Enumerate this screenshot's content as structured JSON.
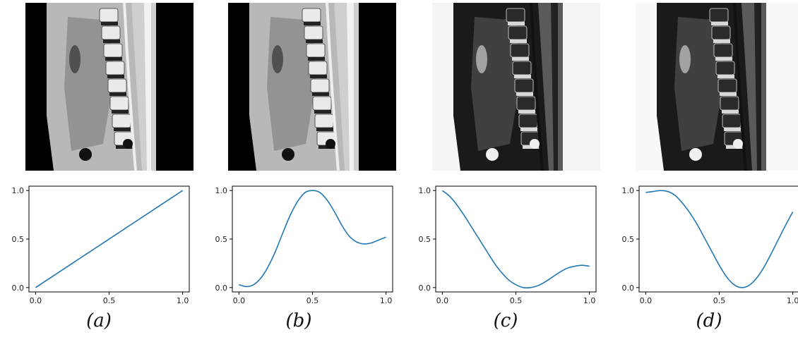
{
  "figure": {
    "panels": [
      {
        "id": "a",
        "caption": "(a)",
        "image": "sagittal-lumbar-spine-mri-original",
        "background": "#000000"
      },
      {
        "id": "b",
        "caption": "(b)",
        "image": "sagittal-lumbar-spine-mri-intensity-remapped",
        "background": "#000000"
      },
      {
        "id": "c",
        "caption": "(c)",
        "image": "sagittal-lumbar-spine-mri-inverted-remap",
        "background": "#f5f5f5"
      },
      {
        "id": "d",
        "caption": "(d)",
        "image": "sagittal-lumbar-spine-mri-inverted-remap-2",
        "background": "#f8f8f8"
      }
    ],
    "line_color": "#1f77b4"
  },
  "chart_data": [
    {
      "type": "line",
      "x": [
        0.0,
        0.1,
        0.2,
        0.3,
        0.4,
        0.5,
        0.6,
        0.7,
        0.8,
        0.9,
        1.0
      ],
      "series": [
        {
          "values": [
            0.0,
            0.1,
            0.2,
            0.3,
            0.4,
            0.5,
            0.6,
            0.7,
            0.8,
            0.9,
            1.0
          ]
        }
      ],
      "xlim": [
        0,
        1
      ],
      "ylim": [
        0,
        1
      ],
      "xticks": [
        "0.0",
        "0.5",
        "1.0"
      ],
      "yticks": [
        "0.0",
        "0.5",
        "1.0"
      ]
    },
    {
      "type": "line",
      "x": [
        0.0,
        0.05,
        0.1,
        0.15,
        0.2,
        0.25,
        0.3,
        0.35,
        0.4,
        0.45,
        0.5,
        0.55,
        0.6,
        0.65,
        0.7,
        0.75,
        0.8,
        0.85,
        0.9,
        0.95,
        1.0
      ],
      "series": [
        {
          "values": [
            0.03,
            0.01,
            0.03,
            0.1,
            0.22,
            0.38,
            0.57,
            0.75,
            0.89,
            0.98,
            1.0,
            0.98,
            0.9,
            0.78,
            0.64,
            0.53,
            0.47,
            0.45,
            0.46,
            0.49,
            0.52
          ]
        }
      ],
      "xlim": [
        0,
        1
      ],
      "ylim": [
        0,
        1
      ],
      "xticks": [
        "0.0",
        "0.5",
        "1.0"
      ],
      "yticks": [
        "0.0",
        "0.5",
        "1.0"
      ]
    },
    {
      "type": "line",
      "x": [
        0.0,
        0.05,
        0.1,
        0.15,
        0.2,
        0.25,
        0.3,
        0.35,
        0.4,
        0.45,
        0.5,
        0.55,
        0.6,
        0.65,
        0.7,
        0.75,
        0.8,
        0.85,
        0.9,
        0.95,
        1.0
      ],
      "series": [
        {
          "values": [
            1.0,
            0.94,
            0.85,
            0.74,
            0.62,
            0.5,
            0.38,
            0.26,
            0.16,
            0.08,
            0.03,
            0.0,
            0.0,
            0.02,
            0.06,
            0.11,
            0.16,
            0.2,
            0.22,
            0.23,
            0.22
          ]
        }
      ],
      "xlim": [
        0,
        1
      ],
      "ylim": [
        0,
        1
      ],
      "xticks": [
        "0.0",
        "0.5",
        "1.0"
      ],
      "yticks": [
        "0.0",
        "0.5",
        "1.0"
      ]
    },
    {
      "type": "line",
      "x": [
        0.0,
        0.05,
        0.1,
        0.15,
        0.2,
        0.25,
        0.3,
        0.35,
        0.4,
        0.45,
        0.5,
        0.55,
        0.6,
        0.65,
        0.7,
        0.75,
        0.8,
        0.85,
        0.9,
        0.95,
        1.0
      ],
      "series": [
        {
          "values": [
            0.98,
            0.99,
            1.0,
            0.99,
            0.95,
            0.87,
            0.77,
            0.65,
            0.51,
            0.37,
            0.23,
            0.11,
            0.03,
            0.0,
            0.02,
            0.09,
            0.2,
            0.34,
            0.49,
            0.64,
            0.78
          ]
        }
      ],
      "xlim": [
        0,
        1
      ],
      "ylim": [
        0,
        1
      ],
      "xticks": [
        "0.0",
        "0.5",
        "1.0"
      ],
      "yticks": [
        "0.0",
        "0.5",
        "1.0"
      ]
    }
  ]
}
